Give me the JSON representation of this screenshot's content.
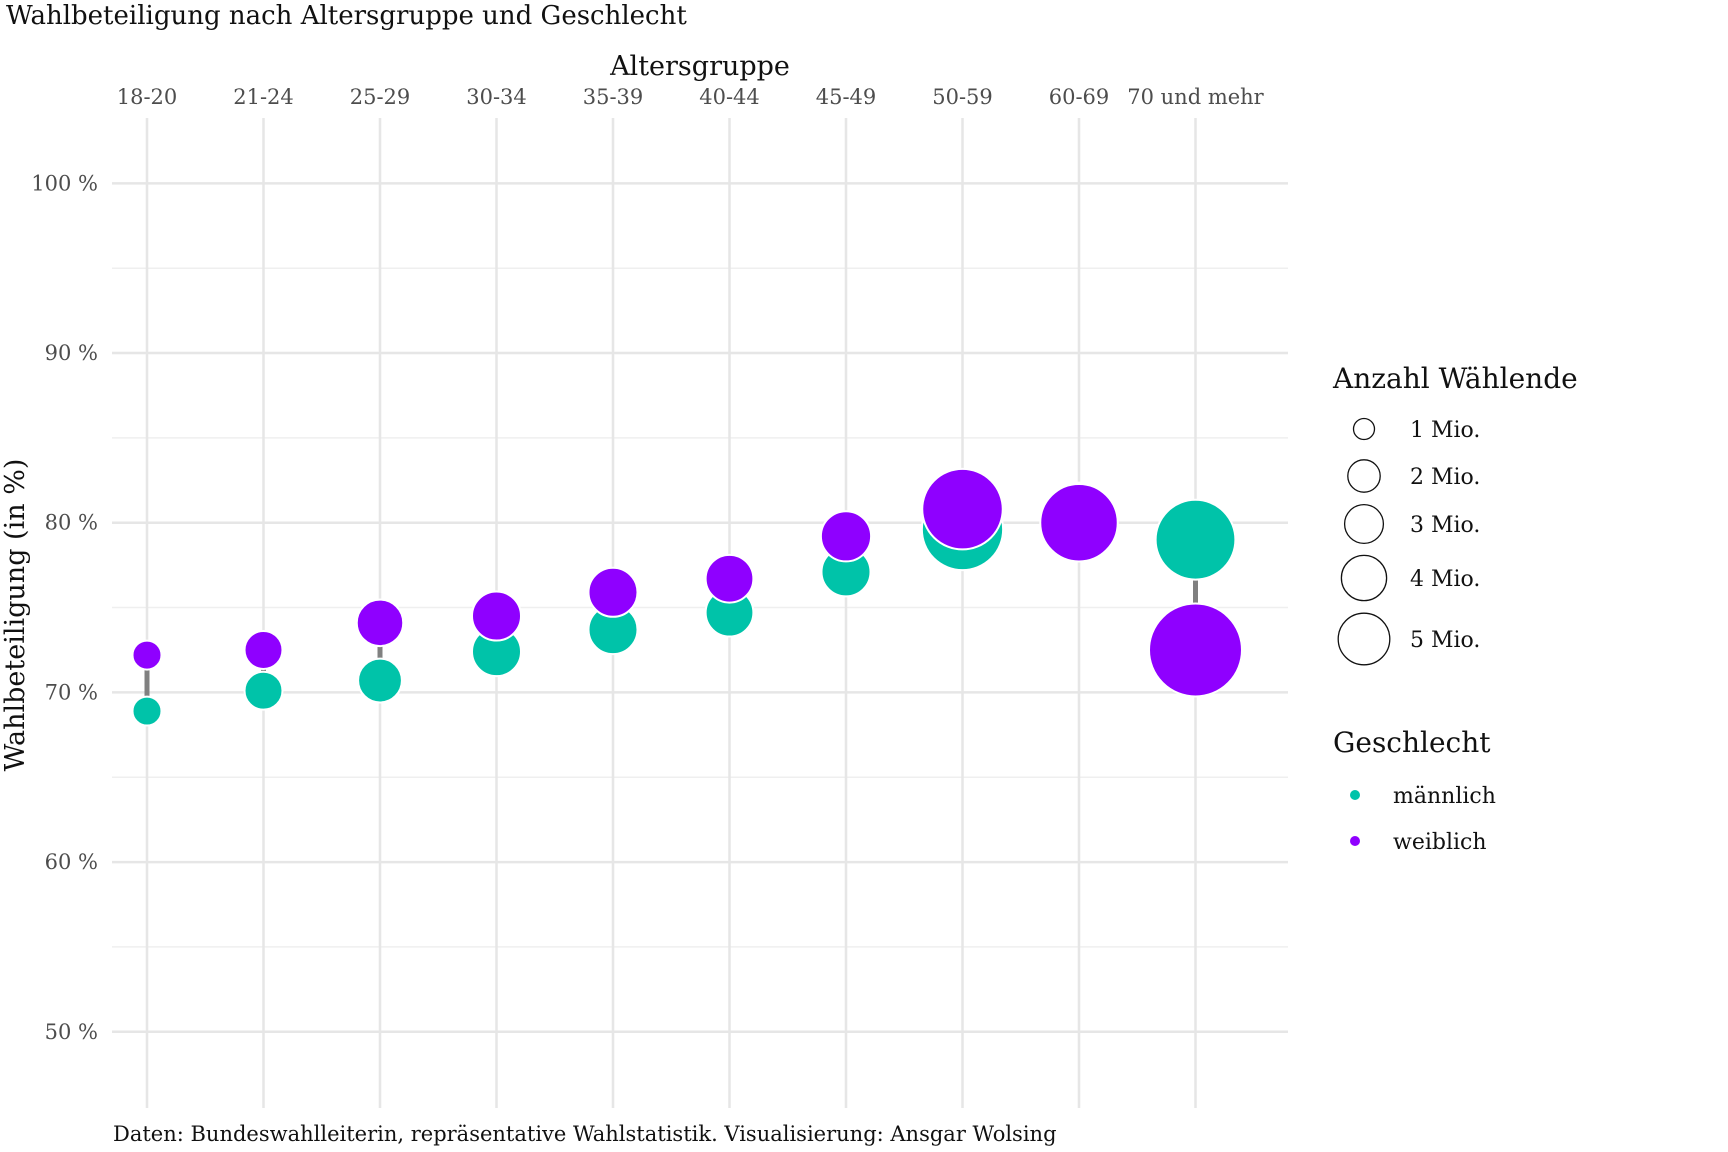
{
  "chart_data": {
    "type": "scatter",
    "title": "Wahlbeteiligung nach Altersgruppe und Geschlecht",
    "xlabel": "Altersgruppe",
    "ylabel": "Wahlbeteiligung (in %)",
    "caption": "Daten: Bundeswahlleiterin, repräsentative Wahlstatistik. Visualisierung: Ansgar Wolsing",
    "x_axis_position": "top",
    "categories": [
      "18-20",
      "21-24",
      "25-29",
      "30-34",
      "35-39",
      "40-44",
      "45-49",
      "50-59",
      "60-69",
      "70 und mehr"
    ],
    "ylim": [
      48,
      103
    ],
    "y_ticks": [
      {
        "value": 50,
        "label": "50 %"
      },
      {
        "value": 60,
        "label": "60 %"
      },
      {
        "value": 70,
        "label": "70 %"
      },
      {
        "value": 80,
        "label": "80 %"
      },
      {
        "value": 90,
        "label": "90 %"
      },
      {
        "value": 100,
        "label": "100 %"
      }
    ],
    "grid": true,
    "connector_color": "#808080",
    "series": [
      {
        "name": "männlich",
        "color": "#00c3a9",
        "values": [
          68.9,
          70.1,
          70.7,
          72.4,
          73.7,
          74.7,
          77.1,
          79.6,
          80.2,
          79.0
        ],
        "voters_mio": [
          0.7,
          1.2,
          1.6,
          2.0,
          2.0,
          1.9,
          2.0,
          5.5,
          4.5,
          5.3
        ]
      },
      {
        "name": "weiblich",
        "color": "#8f00ff",
        "values": [
          72.2,
          72.5,
          74.1,
          74.5,
          75.9,
          76.7,
          79.2,
          80.8,
          80.0,
          72.5
        ],
        "voters_mio": [
          0.7,
          1.2,
          1.8,
          2.0,
          2.0,
          1.9,
          2.1,
          5.4,
          5.0,
          7.2
        ]
      }
    ],
    "legend_size": {
      "title": "Anzahl Wählende",
      "entries": [
        {
          "value": 1,
          "label": "1 Mio."
        },
        {
          "value": 2,
          "label": "2 Mio."
        },
        {
          "value": 3,
          "label": "3 Mio."
        },
        {
          "value": 4,
          "label": "4 Mio."
        },
        {
          "value": 5,
          "label": "5 Mio."
        }
      ]
    },
    "legend_color": {
      "title": "Geschlecht",
      "entries": [
        {
          "label": "männlich",
          "color": "#00c3a9"
        },
        {
          "label": "weiblich",
          "color": "#8f00ff"
        }
      ]
    },
    "legend_placement": "right"
  }
}
